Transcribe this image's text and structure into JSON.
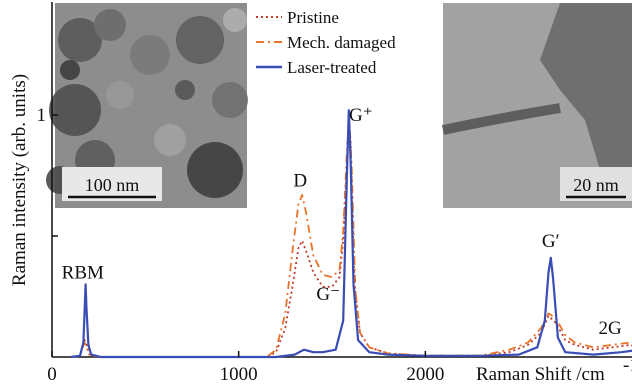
{
  "chart_data": {
    "type": "line",
    "xlabel": "Raman Shift /cm",
    "ylabel": "Raman intensity (arb. units)",
    "xlim": [
      0,
      3000
    ],
    "ylim": [
      0,
      1.0
    ],
    "x_ticks": [
      {
        "value": 0,
        "label": "0"
      },
      {
        "value": 1000,
        "label": "1000"
      },
      {
        "value": 2000,
        "label": "2000"
      }
    ],
    "y_ticks": [
      {
        "value": 0.5,
        "label": ""
      },
      {
        "value": 1.0,
        "label": "1"
      }
    ],
    "legend": {
      "placement": "top-center"
    },
    "series": [
      {
        "name": "Pristine",
        "color": "#c0392b",
        "style": "dotted",
        "points": [
          [
            100,
            0
          ],
          [
            150,
            0.005
          ],
          [
            165,
            0.05
          ],
          [
            175,
            0.07
          ],
          [
            185,
            0.05
          ],
          [
            200,
            0.01
          ],
          [
            250,
            0
          ],
          [
            1150,
            0
          ],
          [
            1200,
            0.02
          ],
          [
            1250,
            0.12
          ],
          [
            1290,
            0.3
          ],
          [
            1320,
            0.45
          ],
          [
            1340,
            0.48
          ],
          [
            1360,
            0.44
          ],
          [
            1400,
            0.35
          ],
          [
            1450,
            0.29
          ],
          [
            1500,
            0.29
          ],
          [
            1540,
            0.33
          ],
          [
            1560,
            0.48
          ],
          [
            1580,
            0.8
          ],
          [
            1590,
            1.0
          ],
          [
            1600,
            0.88
          ],
          [
            1620,
            0.3
          ],
          [
            1650,
            0.1
          ],
          [
            1700,
            0.04
          ],
          [
            1800,
            0.015
          ],
          [
            2000,
            0.005
          ],
          [
            2300,
            0.005
          ],
          [
            2450,
            0.02
          ],
          [
            2550,
            0.05
          ],
          [
            2620,
            0.1
          ],
          [
            2660,
            0.17
          ],
          [
            2700,
            0.14
          ],
          [
            2750,
            0.07
          ],
          [
            2800,
            0.05
          ],
          [
            2900,
            0.03
          ],
          [
            3000,
            0.04
          ],
          [
            3100,
            0.05
          ],
          [
            3180,
            0.02
          ],
          [
            3250,
            0.005
          ]
        ]
      },
      {
        "name": "Mech. damaged",
        "color": "#e8732a",
        "style": "dash-dot",
        "points": [
          [
            100,
            0
          ],
          [
            150,
            0.005
          ],
          [
            165,
            0.04
          ],
          [
            175,
            0.06
          ],
          [
            185,
            0.04
          ],
          [
            200,
            0.01
          ],
          [
            250,
            0
          ],
          [
            1150,
            0
          ],
          [
            1200,
            0.03
          ],
          [
            1250,
            0.18
          ],
          [
            1290,
            0.45
          ],
          [
            1320,
            0.63
          ],
          [
            1340,
            0.67
          ],
          [
            1360,
            0.6
          ],
          [
            1400,
            0.42
          ],
          [
            1450,
            0.34
          ],
          [
            1500,
            0.33
          ],
          [
            1540,
            0.36
          ],
          [
            1560,
            0.52
          ],
          [
            1580,
            0.85
          ],
          [
            1592,
            0.98
          ],
          [
            1605,
            0.8
          ],
          [
            1625,
            0.28
          ],
          [
            1650,
            0.1
          ],
          [
            1700,
            0.04
          ],
          [
            1800,
            0.015
          ],
          [
            2000,
            0.006
          ],
          [
            2300,
            0.006
          ],
          [
            2450,
            0.03
          ],
          [
            2550,
            0.06
          ],
          [
            2620,
            0.12
          ],
          [
            2660,
            0.18
          ],
          [
            2700,
            0.16
          ],
          [
            2750,
            0.09
          ],
          [
            2800,
            0.06
          ],
          [
            2900,
            0.04
          ],
          [
            3000,
            0.05
          ],
          [
            3100,
            0.06
          ],
          [
            3180,
            0.03
          ],
          [
            3250,
            0.005
          ]
        ]
      },
      {
        "name": "Laser-treated",
        "color": "#3a4db5",
        "style": "solid",
        "points": [
          [
            100,
            0
          ],
          [
            150,
            0.005
          ],
          [
            168,
            0.06
          ],
          [
            175,
            0.2
          ],
          [
            180,
            0.3
          ],
          [
            185,
            0.2
          ],
          [
            195,
            0.05
          ],
          [
            210,
            0.01
          ],
          [
            260,
            0
          ],
          [
            1200,
            0
          ],
          [
            1300,
            0.01
          ],
          [
            1350,
            0.03
          ],
          [
            1400,
            0.02
          ],
          [
            1450,
            0.02
          ],
          [
            1520,
            0.03
          ],
          [
            1560,
            0.15
          ],
          [
            1580,
            0.75
          ],
          [
            1590,
            1.02
          ],
          [
            1600,
            0.8
          ],
          [
            1615,
            0.3
          ],
          [
            1640,
            0.07
          ],
          [
            1700,
            0.02
          ],
          [
            1800,
            0.01
          ],
          [
            2000,
            0.005
          ],
          [
            2300,
            0.005
          ],
          [
            2500,
            0.01
          ],
          [
            2600,
            0.04
          ],
          [
            2640,
            0.15
          ],
          [
            2660,
            0.35
          ],
          [
            2672,
            0.41
          ],
          [
            2685,
            0.32
          ],
          [
            2710,
            0.08
          ],
          [
            2750,
            0.02
          ],
          [
            2900,
            0.01
          ],
          [
            3050,
            0.02
          ],
          [
            3150,
            0.03
          ],
          [
            3200,
            0.01
          ],
          [
            3250,
            0
          ]
        ]
      }
    ],
    "peak_labels": [
      {
        "text": "RBM",
        "x": 165,
        "y": 0.3
      },
      {
        "text": "D",
        "x": 1330,
        "y": 0.68
      },
      {
        "text": "G⁺",
        "x": 1655,
        "y": 0.95
      },
      {
        "text": "G⁻",
        "x": 1480,
        "y": 0.21
      },
      {
        "text": "G′",
        "x": 2672,
        "y": 0.43
      },
      {
        "text": "2G",
        "x": 2990,
        "y": 0.07
      }
    ],
    "insets": [
      {
        "name": "tem-left",
        "scale_label": "100 nm"
      },
      {
        "name": "tem-right",
        "scale_label": "20 nm"
      }
    ]
  }
}
